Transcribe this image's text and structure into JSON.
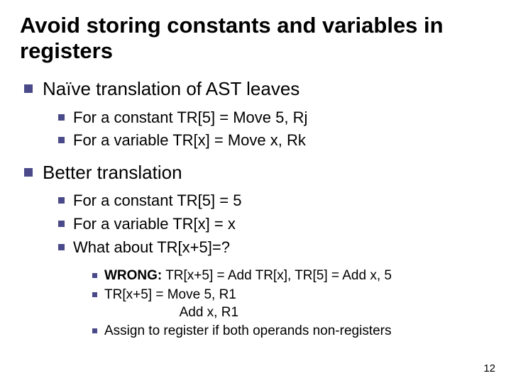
{
  "colors": {
    "bullet": "#4a4a8a",
    "text": "#000000",
    "background": "#ffffff"
  },
  "fontsizes": {
    "title": 31,
    "level1": 26,
    "level2": 22,
    "level3": 19,
    "pagenum": 15
  },
  "title": "Avoid storing constants and variables in registers",
  "sections": [
    {
      "heading": "Naïve translation of AST leaves",
      "items": [
        "For a constant TR[5] = Move 5, Rj",
        "For a variable TR[x] = Move x, Rk"
      ]
    },
    {
      "heading": "Better translation",
      "items": [
        "For a constant TR[5] = 5",
        "For a variable TR[x] = x",
        "What about TR[x+5]=?"
      ],
      "subitems": {
        "wrong_label": "WRONG:",
        "wrong_text": " TR[x+5] = Add TR[x], TR[5] = Add x, 5",
        "line2a": "TR[x+5] = Move 5, R1",
        "line2b": "Add x, R1",
        "line3": "Assign to register if both operands non-registers"
      }
    }
  ],
  "pagenum": "12"
}
